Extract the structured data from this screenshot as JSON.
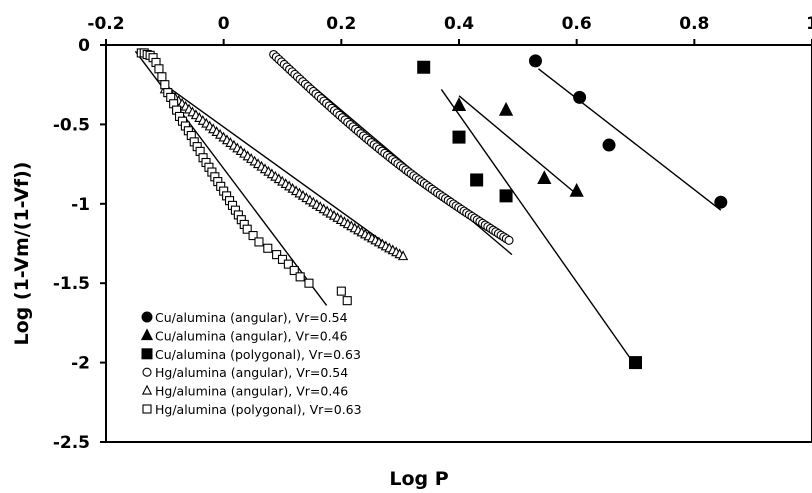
{
  "chart_data": {
    "type": "scatter",
    "xlabel": "Log P",
    "ylabel": "Log (1-Vm/(1-Vf))",
    "xlim": [
      -0.2,
      1.0
    ],
    "ylim": [
      -2.5,
      0
    ],
    "x_ticks": [
      "-0.2",
      "0",
      "0.2",
      "0.4",
      "0.6",
      "0.8",
      "1"
    ],
    "y_ticks": [
      "0",
      "-0.5",
      "-1",
      "-1.5",
      "-2",
      "-2.5"
    ],
    "x_tick_values": [
      -0.2,
      0,
      0.2,
      0.4,
      0.6,
      0.8,
      1.0
    ],
    "y_tick_values": [
      0,
      -0.5,
      -1,
      -1.5,
      -2,
      -2.5
    ],
    "x_axis_position": "top",
    "grid": false,
    "legend_position": "bottom-left",
    "series": [
      {
        "name": "Cu/alumina (angular), Vr=0.54",
        "marker": "circle-filled",
        "points": [
          [
            0.53,
            -0.1
          ],
          [
            0.605,
            -0.33
          ],
          [
            0.655,
            -0.63
          ],
          [
            0.845,
            -0.99
          ]
        ],
        "trendline": [
          [
            0.535,
            -0.15
          ],
          [
            0.845,
            -1.04
          ]
        ]
      },
      {
        "name": "Cu/alumina (angular), Vr=0.46",
        "marker": "triangle-filled",
        "points": [
          [
            0.4,
            -0.38
          ],
          [
            0.48,
            -0.41
          ],
          [
            0.545,
            -0.84
          ],
          [
            0.6,
            -0.92
          ]
        ],
        "trendline": [
          [
            0.4,
            -0.32
          ],
          [
            0.6,
            -0.94
          ]
        ]
      },
      {
        "name": "Cu/alumina (polygonal), Vr=0.63",
        "marker": "square-filled",
        "points": [
          [
            0.34,
            -0.14
          ],
          [
            0.4,
            -0.58
          ],
          [
            0.43,
            -0.85
          ],
          [
            0.48,
            -0.95
          ],
          [
            0.7,
            -2.0
          ]
        ],
        "trendline": [
          [
            0.37,
            -0.28
          ],
          [
            0.7,
            -2.02
          ]
        ]
      },
      {
        "name": "Hg/alumina (angular), Vr=0.54",
        "marker": "circle-open",
        "x_range": [
          0.085,
          0.485
        ],
        "y_range": [
          -0.06,
          -1.23
        ],
        "n_points": 90,
        "trendline": [
          [
            0.085,
            -0.05
          ],
          [
            0.49,
            -1.32
          ]
        ]
      },
      {
        "name": "Hg/alumina (angular), Vr=0.46",
        "marker": "triangle-open",
        "x_range": [
          -0.1,
          0.305
        ],
        "y_range": [
          -0.28,
          -1.33
        ],
        "n_points": 70,
        "trendline": [
          [
            -0.1,
            -0.25
          ],
          [
            0.305,
            -1.33
          ]
        ]
      },
      {
        "name": "Hg/alumina (polygonal), Vr=0.63",
        "marker": "square-open",
        "points": [
          [
            -0.14,
            -0.05
          ],
          [
            -0.135,
            -0.05
          ],
          [
            -0.13,
            -0.06
          ],
          [
            -0.125,
            -0.065
          ],
          [
            -0.12,
            -0.08
          ],
          [
            -0.115,
            -0.11
          ],
          [
            -0.11,
            -0.15
          ],
          [
            -0.105,
            -0.2
          ],
          [
            -0.1,
            -0.25
          ],
          [
            -0.095,
            -0.3
          ],
          [
            -0.09,
            -0.33
          ],
          [
            -0.085,
            -0.37
          ],
          [
            -0.08,
            -0.41
          ],
          [
            -0.075,
            -0.45
          ],
          [
            -0.07,
            -0.48
          ],
          [
            -0.065,
            -0.51
          ],
          [
            -0.06,
            -0.54
          ],
          [
            -0.055,
            -0.57
          ],
          [
            -0.05,
            -0.61
          ],
          [
            -0.045,
            -0.64
          ],
          [
            -0.04,
            -0.67
          ],
          [
            -0.035,
            -0.71
          ],
          [
            -0.03,
            -0.74
          ],
          [
            -0.025,
            -0.77
          ],
          [
            -0.02,
            -0.8
          ],
          [
            -0.015,
            -0.83
          ],
          [
            -0.01,
            -0.86
          ],
          [
            -0.005,
            -0.89
          ],
          [
            0.0,
            -0.92
          ],
          [
            0.005,
            -0.95
          ],
          [
            0.01,
            -0.98
          ],
          [
            0.015,
            -1.01
          ],
          [
            0.02,
            -1.04
          ],
          [
            0.025,
            -1.07
          ],
          [
            0.03,
            -1.1
          ],
          [
            0.035,
            -1.13
          ],
          [
            0.04,
            -1.16
          ],
          [
            0.05,
            -1.2
          ],
          [
            0.06,
            -1.24
          ],
          [
            0.075,
            -1.28
          ],
          [
            0.09,
            -1.32
          ],
          [
            0.1,
            -1.35
          ],
          [
            0.11,
            -1.38
          ],
          [
            0.12,
            -1.42
          ],
          [
            0.13,
            -1.46
          ],
          [
            0.145,
            -1.5
          ],
          [
            0.2,
            -1.55
          ],
          [
            0.21,
            -1.61
          ]
        ],
        "trendline": [
          [
            -0.15,
            -0.04
          ],
          [
            0.175,
            -1.64
          ]
        ]
      }
    ]
  }
}
